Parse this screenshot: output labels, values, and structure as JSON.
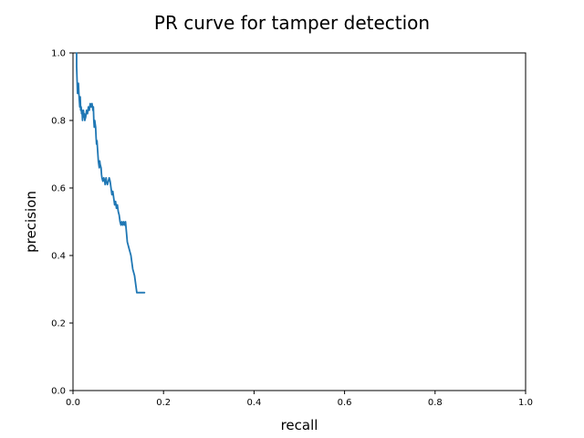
{
  "chart_data": {
    "type": "line",
    "title": "PR curve for tamper detection",
    "xlabel": "recall",
    "ylabel": "precision",
    "xlim": [
      0,
      1
    ],
    "ylim": [
      0,
      1
    ],
    "xticks": [
      "0.0",
      "0.2",
      "0.4",
      "0.6",
      "0.8",
      "1.0"
    ],
    "yticks": [
      "0.0",
      "0.2",
      "0.4",
      "0.6",
      "0.8",
      "1.0"
    ],
    "grid": false,
    "legend": false,
    "series": [
      {
        "color": "#1f77b4",
        "x": [
          0.008,
          0.008,
          0.009,
          0.01,
          0.012,
          0.013,
          0.014,
          0.015,
          0.016,
          0.017,
          0.018,
          0.019,
          0.02,
          0.021,
          0.022,
          0.023,
          0.024,
          0.025,
          0.026,
          0.028,
          0.03,
          0.032,
          0.034,
          0.036,
          0.038,
          0.04,
          0.042,
          0.044,
          0.045,
          0.046,
          0.047,
          0.048,
          0.049,
          0.05,
          0.051,
          0.052,
          0.053,
          0.054,
          0.055,
          0.056,
          0.057,
          0.058,
          0.059,
          0.06,
          0.062,
          0.063,
          0.064,
          0.066,
          0.068,
          0.07,
          0.071,
          0.072,
          0.073,
          0.074,
          0.076,
          0.078,
          0.08,
          0.082,
          0.084,
          0.086,
          0.088,
          0.09,
          0.091,
          0.092,
          0.094,
          0.096,
          0.098,
          0.1,
          0.102,
          0.104,
          0.106,
          0.108,
          0.11,
          0.112,
          0.114,
          0.116,
          0.118,
          0.12,
          0.122,
          0.124,
          0.126,
          0.128,
          0.13,
          0.132,
          0.134,
          0.136,
          0.137,
          0.138,
          0.139,
          0.14,
          0.141,
          0.142,
          0.143,
          0.144,
          0.145,
          0.146,
          0.148,
          0.15,
          0.152,
          0.154,
          0.156,
          0.158
        ],
        "y": [
          1.0,
          0.96,
          0.92,
          0.88,
          0.91,
          0.88,
          0.86,
          0.84,
          0.87,
          0.83,
          0.84,
          0.82,
          0.83,
          0.8,
          0.82,
          0.83,
          0.81,
          0.82,
          0.8,
          0.81,
          0.83,
          0.82,
          0.84,
          0.83,
          0.85,
          0.84,
          0.85,
          0.83,
          0.84,
          0.8,
          0.78,
          0.8,
          0.79,
          0.78,
          0.75,
          0.73,
          0.74,
          0.72,
          0.7,
          0.68,
          0.67,
          0.66,
          0.68,
          0.67,
          0.66,
          0.64,
          0.63,
          0.62,
          0.63,
          0.62,
          0.61,
          0.62,
          0.63,
          0.62,
          0.61,
          0.62,
          0.63,
          0.62,
          0.6,
          0.58,
          0.59,
          0.57,
          0.56,
          0.55,
          0.56,
          0.54,
          0.55,
          0.53,
          0.52,
          0.5,
          0.49,
          0.5,
          0.49,
          0.5,
          0.49,
          0.5,
          0.47,
          0.44,
          0.43,
          0.42,
          0.41,
          0.4,
          0.38,
          0.36,
          0.35,
          0.34,
          0.33,
          0.32,
          0.31,
          0.3,
          0.29,
          0.29,
          0.29,
          0.29,
          0.29,
          0.29,
          0.29,
          0.29,
          0.29,
          0.29,
          0.29,
          0.29
        ]
      }
    ]
  }
}
